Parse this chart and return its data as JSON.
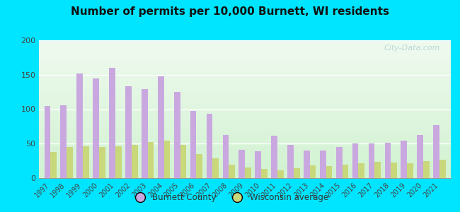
{
  "title": "Number of permits per 10,000 Burnett, WI residents",
  "years": [
    1997,
    1998,
    1999,
    2000,
    2001,
    2002,
    2003,
    2004,
    2005,
    2006,
    2007,
    2008,
    2009,
    2010,
    2011,
    2012,
    2013,
    2014,
    2015,
    2016,
    2017,
    2018,
    2019,
    2020,
    2021
  ],
  "burnett": [
    105,
    106,
    152,
    145,
    160,
    133,
    129,
    148,
    125,
    97,
    93,
    63,
    41,
    39,
    62,
    48,
    40,
    40,
    45,
    50,
    50,
    51,
    54,
    63,
    77
  ],
  "wisconsin": [
    38,
    45,
    46,
    45,
    46,
    48,
    52,
    54,
    48,
    35,
    29,
    19,
    15,
    13,
    11,
    14,
    18,
    17,
    20,
    22,
    24,
    23,
    22,
    25,
    27
  ],
  "burnett_color": "#c9a8e0",
  "wisconsin_color": "#c8d87a",
  "outer_background": "#00e5ff",
  "ylim": [
    0,
    200
  ],
  "yticks": [
    0,
    50,
    100,
    150,
    200
  ],
  "title_fontsize": 11,
  "legend_burnett": "Burnett County",
  "legend_wisconsin": "Wisconsin average",
  "watermark": "City-Data.com"
}
